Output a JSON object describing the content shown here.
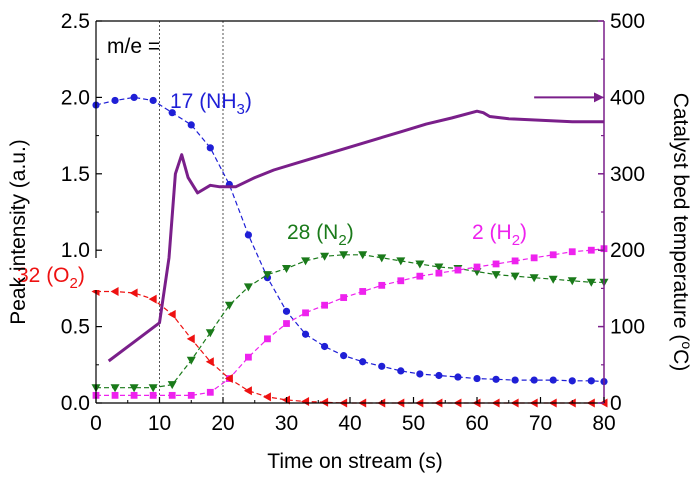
{
  "chart_data": {
    "type": "line",
    "xlabel": "Time on stream (s)",
    "ylabel": "Peak intensity (a.u.)",
    "y2label": "Catalyst bed temperature (",
    "y2label_unit": "C)",
    "y2label_sup": "o",
    "xlim": [
      0,
      80
    ],
    "ylim": [
      0,
      2.5
    ],
    "y2lim": [
      0,
      500
    ],
    "xticks": [
      "0",
      "10",
      "20",
      "30",
      "40",
      "50",
      "60",
      "70",
      "80"
    ],
    "yticks": [
      "0.0",
      "0.5",
      "1.0",
      "1.5",
      "2.0",
      "2.5"
    ],
    "y2ticks": [
      "0",
      "100",
      "200",
      "300",
      "400",
      "500"
    ],
    "grid": false,
    "legend": "none",
    "annotations": {
      "me_label": "m/e =",
      "nh3": {
        "num": "17 (NH",
        "sub": "3",
        "close": ")",
        "color": "#1f1fd6"
      },
      "n2": {
        "num": "28 (N",
        "sub": "2",
        "close": ")",
        "color": "#1a7a1a"
      },
      "h2": {
        "num": "2 (H",
        "sub": "2",
        "close": ")",
        "color": "#ee22ee"
      },
      "o2": {
        "num": "32 (O",
        "sub": "2",
        "close": ")",
        "color": "#ee1111"
      }
    },
    "vlines": [
      10,
      20
    ],
    "series": [
      {
        "name": "17 (NH3)",
        "axis": "left",
        "color": "#1f1fd6",
        "marker": "circle",
        "x": [
          0,
          3,
          6,
          9,
          12,
          15,
          18,
          21,
          24,
          27,
          30,
          33,
          36,
          39,
          42,
          45,
          48,
          51,
          54,
          57,
          60,
          63,
          66,
          69,
          72,
          75,
          78,
          80
        ],
        "y": [
          1.95,
          1.98,
          2.0,
          1.98,
          1.9,
          1.82,
          1.67,
          1.43,
          1.1,
          0.82,
          0.6,
          0.45,
          0.37,
          0.31,
          0.27,
          0.24,
          0.21,
          0.19,
          0.18,
          0.17,
          0.16,
          0.155,
          0.15,
          0.15,
          0.15,
          0.145,
          0.145,
          0.14
        ]
      },
      {
        "name": "28 (N2)",
        "axis": "left",
        "color": "#1a7a1a",
        "marker": "triangle-down",
        "x": [
          0,
          3,
          6,
          9,
          12,
          15,
          18,
          21,
          24,
          27,
          30,
          33,
          36,
          39,
          42,
          45,
          48,
          51,
          54,
          57,
          60,
          63,
          66,
          69,
          72,
          75,
          78,
          80
        ],
        "y": [
          0.1,
          0.1,
          0.1,
          0.1,
          0.12,
          0.28,
          0.46,
          0.64,
          0.76,
          0.84,
          0.88,
          0.93,
          0.96,
          0.97,
          0.97,
          0.95,
          0.93,
          0.91,
          0.89,
          0.88,
          0.86,
          0.84,
          0.83,
          0.82,
          0.81,
          0.8,
          0.79,
          0.79
        ]
      },
      {
        "name": "2 (H2)",
        "axis": "left",
        "color": "#ee22ee",
        "marker": "square",
        "x": [
          0,
          3,
          6,
          9,
          12,
          15,
          18,
          21,
          24,
          27,
          30,
          33,
          36,
          39,
          42,
          45,
          48,
          51,
          54,
          57,
          60,
          63,
          66,
          69,
          72,
          75,
          78,
          80
        ],
        "y": [
          0.05,
          0.05,
          0.05,
          0.05,
          0.05,
          0.05,
          0.07,
          0.16,
          0.3,
          0.42,
          0.52,
          0.59,
          0.64,
          0.69,
          0.73,
          0.77,
          0.8,
          0.83,
          0.85,
          0.87,
          0.89,
          0.91,
          0.93,
          0.95,
          0.97,
          0.99,
          1.0,
          1.01
        ]
      },
      {
        "name": "32 (O2)",
        "axis": "left",
        "color": "#ee1111",
        "marker": "triangle-left",
        "x": [
          0,
          3,
          6,
          9,
          12,
          15,
          18,
          21,
          24,
          27,
          30,
          33,
          36,
          39,
          42,
          45,
          48,
          51,
          54,
          57,
          60,
          63,
          66,
          69,
          72,
          75,
          78,
          80
        ],
        "y": [
          0.73,
          0.73,
          0.72,
          0.68,
          0.58,
          0.42,
          0.27,
          0.16,
          0.08,
          0.04,
          0.02,
          0.01,
          0.005,
          0,
          0,
          0,
          0,
          0,
          0,
          0,
          0,
          0,
          0,
          0,
          0,
          0,
          0,
          0
        ]
      },
      {
        "name": "Catalyst bed temperature",
        "axis": "right",
        "color": "#7a1f8a",
        "marker": "none",
        "x": [
          2,
          6,
          10,
          11.5,
          12.5,
          13.5,
          14.5,
          16,
          18,
          19.5,
          22,
          25,
          28,
          32,
          36,
          40,
          44,
          48,
          52,
          56,
          60,
          61,
          62,
          65,
          70,
          75,
          80
        ],
        "y": [
          55,
          80,
          105,
          190,
          300,
          325,
          295,
          275,
          285,
          283,
          283,
          295,
          305,
          315,
          325,
          335,
          345,
          355,
          365,
          373,
          382,
          380,
          375,
          372,
          370,
          368,
          368
        ]
      }
    ],
    "temp_arrow": {
      "x_from": 69,
      "x_to": 80,
      "y": 400
    }
  }
}
